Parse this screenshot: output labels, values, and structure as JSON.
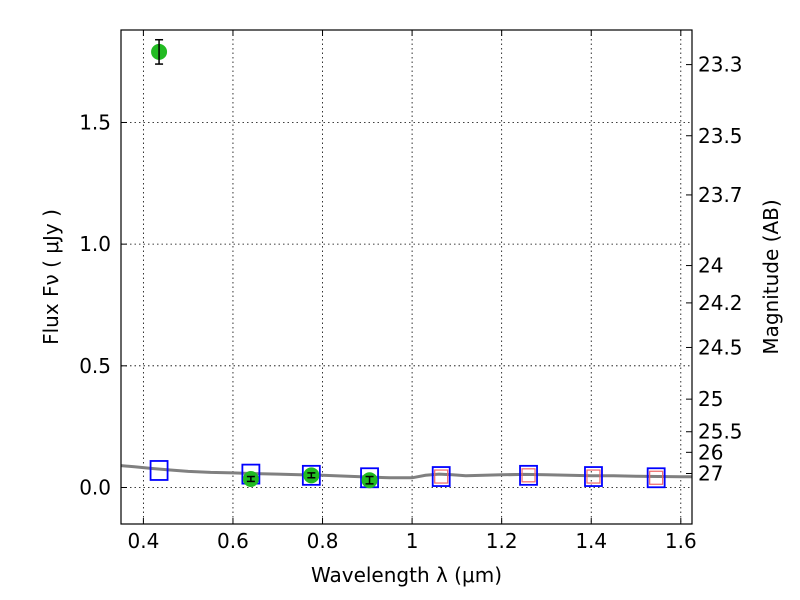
{
  "chart_data": {
    "type": "scatter",
    "title": "",
    "xlabel": "Wavelength  λ (μm)",
    "ylabel": "Flux  Fν  ( μJy )",
    "ylabel_right": "Magnitude (AB)",
    "xlim": [
      0.35,
      1.625
    ],
    "ylim": [
      -0.15,
      1.88
    ],
    "x_ticks": [
      0.4,
      0.6,
      0.8,
      1.0,
      1.2,
      1.4,
      1.6
    ],
    "x_tick_labels": [
      "0.4",
      "0.6",
      "0.8",
      "1",
      "1.2",
      "1.4",
      "1.6"
    ],
    "y_ticks": [
      0.0,
      0.5,
      1.0,
      1.5
    ],
    "y_tick_labels": [
      "0.0",
      "0.5",
      "1.0",
      "1.5"
    ],
    "right_ticks": [
      {
        "label": "23.3",
        "mag": 23.3
      },
      {
        "label": "23.5",
        "mag": 23.5
      },
      {
        "label": "23.7",
        "mag": 23.7
      },
      {
        "label": "24",
        "mag": 24.0
      },
      {
        "label": "24.2",
        "mag": 24.2
      },
      {
        "label": "24.5",
        "mag": 24.5
      },
      {
        "label": "25",
        "mag": 25.0
      },
      {
        "label": "25.5",
        "mag": 25.5
      },
      {
        "label": "26",
        "mag": 26.0
      },
      {
        "label": "27",
        "mag": 27.0
      }
    ],
    "grid": true,
    "colors": {
      "observed": "#22bb22",
      "model_box": "#0000ff",
      "model_box_inner": "#ee6666",
      "spectrum": "#808080",
      "errorbar": "#000000"
    },
    "series": [
      {
        "kind": "observed_points",
        "points": [
          {
            "x": 0.435,
            "y": 1.79,
            "err": 0.05
          },
          {
            "x": 0.64,
            "y": 0.035,
            "err": 0.01
          },
          {
            "x": 0.775,
            "y": 0.05,
            "err": 0.01
          },
          {
            "x": 0.905,
            "y": 0.03,
            "err": 0.015
          }
        ]
      },
      {
        "kind": "model_boxes",
        "points": [
          {
            "x": 0.435,
            "y": 0.07,
            "inner": false
          },
          {
            "x": 0.64,
            "y": 0.055,
            "inner": false
          },
          {
            "x": 0.775,
            "y": 0.05,
            "inner": false
          },
          {
            "x": 0.905,
            "y": 0.04,
            "inner": false
          },
          {
            "x": 1.065,
            "y": 0.045,
            "inner": true
          },
          {
            "x": 1.26,
            "y": 0.05,
            "inner": true
          },
          {
            "x": 1.405,
            "y": 0.045,
            "inner": true
          },
          {
            "x": 1.545,
            "y": 0.04,
            "inner": true
          }
        ]
      },
      {
        "kind": "spectrum_line",
        "x": [
          0.35,
          0.38,
          0.42,
          0.46,
          0.5,
          0.55,
          0.6,
          0.65,
          0.7,
          0.75,
          0.8,
          0.85,
          0.9,
          0.95,
          1.0,
          1.03,
          1.06,
          1.09,
          1.12,
          1.16,
          1.2,
          1.25,
          1.3,
          1.35,
          1.4,
          1.45,
          1.5,
          1.55,
          1.6,
          1.625
        ],
        "y": [
          0.09,
          0.085,
          0.078,
          0.072,
          0.066,
          0.062,
          0.06,
          0.057,
          0.055,
          0.052,
          0.05,
          0.047,
          0.043,
          0.04,
          0.04,
          0.05,
          0.055,
          0.052,
          0.048,
          0.05,
          0.052,
          0.054,
          0.052,
          0.05,
          0.048,
          0.048,
          0.046,
          0.045,
          0.044,
          0.044
        ]
      }
    ]
  }
}
